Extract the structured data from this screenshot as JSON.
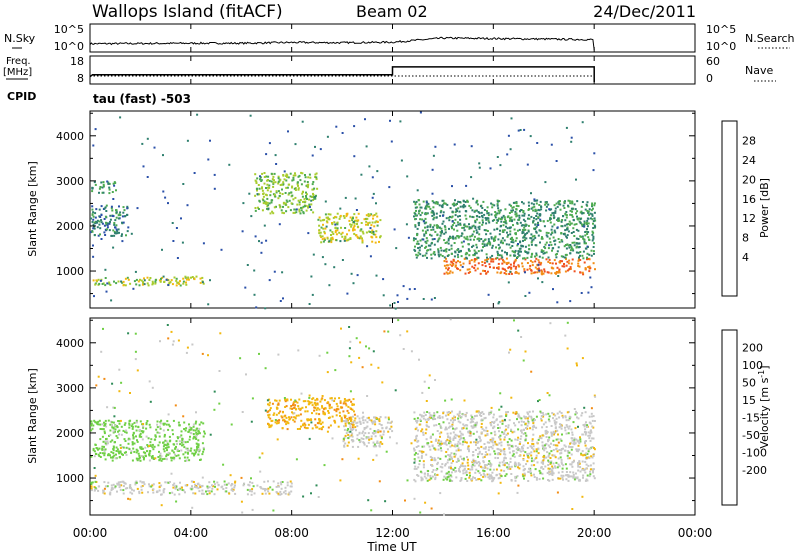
{
  "header": {
    "title": "Wallops Island (fitACF)",
    "beam": "Beam 02",
    "date": "24/Dec/2011"
  },
  "noise_panel": {
    "left_label": "N.Sky",
    "left_ticks": [
      "10^5",
      "10^0"
    ],
    "right_label": "N.Search",
    "right_ticks": [
      "10^5",
      "10^0"
    ]
  },
  "freq_panel": {
    "left_label_line1": "Freq.",
    "left_label_line2": "[MHz]",
    "left_ticks": [
      "18",
      "8"
    ],
    "right_label": "Nave",
    "right_ticks": [
      "60",
      "0"
    ]
  },
  "cpid": {
    "label": "CPID",
    "mode": "tau (fast) -503"
  },
  "x_axis": {
    "label": "Time UT",
    "ticks": [
      "00:00",
      "04:00",
      "08:00",
      "12:00",
      "16:00",
      "20:00",
      "00:00"
    ]
  },
  "colors": {
    "power_scale": [
      "#1a1aff",
      "#2a4fa8",
      "#2e7f6e",
      "#4caa50",
      "#a8cc2e",
      "#f2b80f",
      "#f28c14",
      "#f0501e",
      "#e81414"
    ],
    "velocity_scale": [
      "#e81414",
      "#f0501e",
      "#f28c14",
      "#f2b80f",
      "#c8c8c8",
      "#c8c8c8",
      "#6fcf45",
      "#2e8b57",
      "#2a4fa8",
      "#1a1aff"
    ]
  },
  "chart_data": [
    {
      "type": "line",
      "panel": "noise",
      "x_label": "",
      "x_unit": "hour UT",
      "x_range": [
        0,
        24
      ],
      "series": [
        {
          "name": "N.Sky",
          "x": [
            0,
            2,
            4,
            6,
            8,
            10,
            12,
            13,
            14,
            16,
            18,
            20
          ],
          "y": [
            1.2,
            1.25,
            1.3,
            1.3,
            1.45,
            1.4,
            1.5,
            1.9,
            2.3,
            2.2,
            2.1,
            2.0
          ],
          "note_scale": "log10"
        }
      ]
    },
    {
      "type": "line",
      "panel": "frequency",
      "x_range": [
        0,
        24
      ],
      "series": [
        {
          "name": "Freq.",
          "x": [
            0,
            0.1,
            12.0,
            12.0,
            20.0,
            20.0
          ],
          "y": [
            10.2,
            11.0,
            11.0,
            14.3,
            14.3,
            8.0
          ]
        },
        {
          "name": "Nave",
          "x": [
            0,
            20
          ],
          "y": [
            18,
            18
          ]
        }
      ],
      "y_range": [
        8,
        18
      ]
    },
    {
      "type": "heatmap",
      "panel": "power",
      "ylabel": "Slant Range [km]",
      "colorbar_label": "Power [dB]",
      "colorbar_ticks": [
        "28",
        "24",
        "20",
        "16",
        "12",
        "8",
        "4"
      ],
      "x_range": [
        0,
        24
      ],
      "y_range": [
        180,
        4550
      ],
      "y_ticks": [
        "1000",
        "2000",
        "3000",
        "4000"
      ],
      "regions": [
        {
          "t0": 0.0,
          "t1": 4.5,
          "r0": 700,
          "r1": 900,
          "power": 18
        },
        {
          "t0": 0.0,
          "t1": 1.5,
          "r0": 1800,
          "r1": 2500,
          "power": 10
        },
        {
          "t0": 0.0,
          "t1": 1.0,
          "r0": 2750,
          "r1": 3000,
          "power": 12
        },
        {
          "t0": 6.5,
          "t1": 9.0,
          "r0": 2300,
          "r1": 3200,
          "power": 16
        },
        {
          "t0": 9.0,
          "t1": 11.5,
          "r0": 1650,
          "r1": 2300,
          "power": 19
        },
        {
          "t0": 14.0,
          "t1": 20.0,
          "r0": 950,
          "r1": 1300,
          "power": 28
        },
        {
          "t0": 12.8,
          "t1": 20.0,
          "r0": 1300,
          "r1": 2600,
          "power": 12
        }
      ]
    },
    {
      "type": "heatmap",
      "panel": "velocity",
      "ylabel": "Slant Range [km]",
      "colorbar_label": "Velocity [m s^-1]",
      "colorbar_ticks": [
        "200",
        "100",
        "50",
        "15",
        "-15",
        "-50",
        "-100",
        "-200"
      ],
      "x_range": [
        0,
        24
      ],
      "y_range": [
        180,
        4550
      ],
      "y_ticks": [
        "1000",
        "2000",
        "3000",
        "4000"
      ],
      "regions": [
        {
          "t0": 0.0,
          "t1": 8.0,
          "r0": 650,
          "r1": 950,
          "velocity": 0
        },
        {
          "t0": 0.0,
          "t1": 4.5,
          "r0": 1400,
          "r1": 2300,
          "velocity": 30
        },
        {
          "t0": 7.0,
          "t1": 10.5,
          "r0": 2100,
          "r1": 2800,
          "velocity": -40
        },
        {
          "t0": 10.0,
          "t1": 12.0,
          "r0": 1700,
          "r1": 2400,
          "velocity": 0
        },
        {
          "t0": 12.8,
          "t1": 20.0,
          "r0": 950,
          "r1": 2500,
          "velocity": 0
        }
      ]
    }
  ]
}
